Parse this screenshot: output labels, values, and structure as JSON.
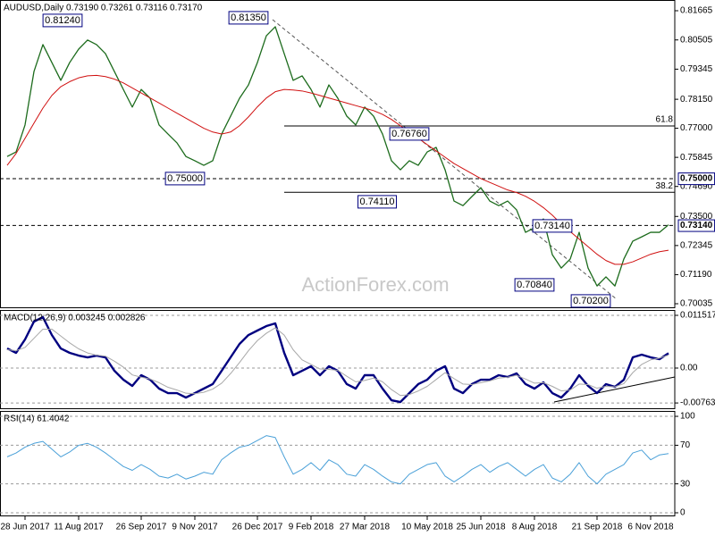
{
  "chart_data": [
    {
      "type": "line",
      "title": "AUDUSD,Daily  0.73190 0.73261 0.73116 0.73170",
      "watermark": "ActionForex.com",
      "categories": [
        null,
        null,
        "28 Jun 2017",
        null,
        null,
        null,
        null,
        null,
        "11 Aug 2017",
        null,
        null,
        null,
        null,
        null,
        null,
        "26 Sep 2017",
        null,
        null,
        null,
        null,
        null,
        "9 Nov 2017",
        null,
        null,
        null,
        null,
        null,
        null,
        "26 Dec 2017",
        null,
        null,
        null,
        null,
        null,
        "9 Feb 2018",
        null,
        null,
        null,
        null,
        null,
        "27 Mar 2018",
        null,
        null,
        null,
        null,
        null,
        null,
        "10 May 2018",
        null,
        null,
        null,
        null,
        null,
        "25 Jun 2018",
        null,
        null,
        null,
        null,
        null,
        "8 Aug 2018",
        null,
        null,
        null,
        null,
        null,
        null,
        "21 Sep 2018",
        null,
        null,
        null,
        null,
        null,
        "6 Nov 2018",
        null,
        null
      ],
      "series": [
        {
          "color": "#1c6b1c",
          "width": 1.3,
          "values": [
            0.7588,
            0.7606,
            0.7713,
            0.7925,
            0.8032,
            0.7961,
            0.789,
            0.7961,
            0.8014,
            0.805,
            0.8032,
            0.7996,
            0.7925,
            0.7854,
            0.7784,
            0.7854,
            0.7819,
            0.7713,
            0.7677,
            0.7642,
            0.7588,
            0.7571,
            0.7553,
            0.7571,
            0.7677,
            0.7748,
            0.7819,
            0.7872,
            0.7961,
            0.8067,
            0.8103,
            0.7996,
            0.789,
            0.7908,
            0.7854,
            0.7784,
            0.7872,
            0.7819,
            0.7748,
            0.7713,
            0.7784,
            0.7748,
            0.7677,
            0.7571,
            0.7535,
            0.7571,
            0.7553,
            0.7606,
            0.7624,
            0.7535,
            0.7411,
            0.7393,
            0.7429,
            0.7464,
            0.7411,
            0.7393,
            0.7411,
            0.7376,
            0.7287,
            0.7305,
            0.734,
            0.7198,
            0.7145,
            0.7181,
            0.7287,
            0.7145,
            0.7074,
            0.711,
            0.7074,
            0.7181,
            0.7252,
            0.7269,
            0.7287,
            0.7287,
            0.7317
          ]
        },
        {
          "color": "#d01010",
          "width": 1,
          "values": [
            0.7553,
            0.76,
            0.766,
            0.772,
            0.778,
            0.783,
            0.7865,
            0.7885,
            0.79,
            0.7908,
            0.791,
            0.7905,
            0.7895,
            0.788,
            0.786,
            0.784,
            0.782,
            0.78,
            0.778,
            0.776,
            0.774,
            0.772,
            0.77,
            0.7685,
            0.7677,
            0.7685,
            0.771,
            0.7745,
            0.7785,
            0.782,
            0.7845,
            0.7854,
            0.7852,
            0.7848,
            0.784,
            0.783,
            0.782,
            0.781,
            0.78,
            0.779,
            0.778,
            0.777,
            0.7755,
            0.7735,
            0.771,
            0.7685,
            0.766,
            0.7635,
            0.761,
            0.7585,
            0.756,
            0.754,
            0.752,
            0.75,
            0.7485,
            0.747,
            0.7455,
            0.7445,
            0.743,
            0.741,
            0.7385,
            0.7355,
            0.732,
            0.729,
            0.726,
            0.723,
            0.72,
            0.7175,
            0.716,
            0.716,
            0.717,
            0.7185,
            0.72,
            0.721,
            0.7216
          ]
        }
      ],
      "ylim": [
        0.69858,
        0.8209
      ],
      "yticks": [
        {
          "value": 0.81665,
          "label": "0.81665"
        },
        {
          "value": 0.80505,
          "label": "0.80505"
        },
        {
          "value": 0.79345,
          "label": "0.79345"
        },
        {
          "value": 0.7815,
          "label": "0.78150"
        },
        {
          "value": 0.77,
          "label": "0.77000"
        },
        {
          "value": 0.75845,
          "label": "0.75845"
        },
        {
          "value": 0.7469,
          "label": "0.74690"
        },
        {
          "value": 0.735,
          "label": "0.73500"
        },
        {
          "value": 0.72345,
          "label": "0.72345"
        },
        {
          "value": 0.7119,
          "label": "0.71190"
        },
        {
          "value": 0.70035,
          "label": "0.70035"
        }
      ],
      "levels": [
        {
          "value": 0.75,
          "label": "0.75000"
        },
        {
          "value": 0.7314,
          "label": "0.73140"
        }
      ],
      "fib_levels": [
        {
          "value": 0.7709,
          "label": "61.8"
        },
        {
          "value": 0.7446,
          "label": "38.2"
        }
      ],
      "annotations": [
        "0.81240",
        "0.81350",
        "0.75000",
        "0.74110",
        "0.76760",
        "0.73140",
        "0.70840",
        "0.70200"
      ]
    },
    {
      "type": "line",
      "title": "MACD(12,26,9) 0.003245 0.002826",
      "series": [
        {
          "color": "#000080",
          "width": 2.4,
          "values": [
            0.00429,
            0.00332,
            0.00625,
            0.01015,
            0.01113,
            0.00722,
            0.00429,
            0.00332,
            0.00273,
            0.00234,
            0.00273,
            0.00234,
            -0.00059,
            -0.00254,
            -0.0039,
            -0.00156,
            -0.00254,
            -0.00449,
            -0.00547,
            -0.00547,
            -0.00644,
            -0.00547,
            -0.00449,
            -0.00351,
            -0.00059,
            0.00234,
            0.00527,
            0.00722,
            0.0082,
            0.00917,
            0.00976,
            0.00332,
            -0.00156,
            -0.00059,
            0.00039,
            -0.00156,
            0.00039,
            -0.00059,
            -0.00351,
            -0.00449,
            -0.00156,
            -0.00156,
            -0.00449,
            -0.00703,
            -0.00742,
            -0.00547,
            -0.00351,
            -0.00254,
            -0.00059,
            0.00039,
            -0.00449,
            -0.00547,
            -0.00351,
            -0.00254,
            -0.00254,
            -0.00156,
            -0.00195,
            -0.00117,
            -0.00351,
            -0.00449,
            -0.00312,
            -0.00547,
            -0.00644,
            -0.00449,
            -0.00156,
            -0.0039,
            -0.00547,
            -0.00351,
            -0.0041,
            -0.00254,
            0.00234,
            0.00293,
            0.00234,
            0.00195,
            0.003245
          ]
        },
        {
          "color": "#a8a8a8",
          "width": 1,
          "values": [
            0.004,
            0.0038,
            0.0045,
            0.0065,
            0.0085,
            0.0085,
            0.007,
            0.0055,
            0.0042,
            0.0033,
            0.0028,
            0.0026,
            0.0015,
            0.0002,
            -0.0015,
            -0.002,
            -0.0024,
            -0.0032,
            -0.0042,
            -0.0048,
            -0.0055,
            -0.0056,
            -0.0053,
            -0.0046,
            -0.0033,
            -0.0012,
            0.0012,
            0.0038,
            0.006,
            0.0076,
            0.0088,
            0.0072,
            0.004,
            0.0018,
            0.0008,
            -0.0002,
            -0.0003,
            -0.0005,
            -0.0018,
            -0.003,
            -0.0027,
            -0.0022,
            -0.003,
            -0.0047,
            -0.006,
            -0.0058,
            -0.005,
            -0.004,
            -0.0025,
            -0.001,
            -0.0023,
            -0.0035,
            -0.0036,
            -0.0032,
            -0.0028,
            -0.0022,
            -0.002,
            -0.0016,
            -0.0024,
            -0.0033,
            -0.0032,
            -0.004,
            -0.005,
            -0.0048,
            -0.0035,
            -0.0036,
            -0.0044,
            -0.004,
            -0.0041,
            -0.0034,
            -0.001,
            0.0008,
            0.0018,
            0.0022,
            0.002826
          ]
        }
      ],
      "ylim": [
        -0.008979,
        0.012688
      ],
      "yticks": [
        0.011517,
        {
          "value": 0,
          "label": "0.00"
        },
        {
          "value": -0.00763,
          "label": "-0.00763"
        }
      ],
      "grid": true
    },
    {
      "type": "line",
      "title": "RSI(14) 61.4042",
      "series": [
        {
          "color": "#4aa0d8",
          "width": 1,
          "values": [
            58,
            62,
            68,
            72,
            74,
            66,
            58,
            63,
            70,
            72,
            68,
            62,
            55,
            48,
            44,
            50,
            45,
            38,
            36,
            40,
            35,
            38,
            42,
            40,
            55,
            62,
            68,
            70,
            75,
            80,
            78,
            58,
            40,
            45,
            52,
            44,
            55,
            50,
            40,
            38,
            50,
            45,
            38,
            32,
            30,
            40,
            45,
            50,
            52,
            38,
            32,
            38,
            45,
            50,
            42,
            48,
            52,
            45,
            38,
            45,
            50,
            36,
            32,
            40,
            52,
            38,
            30,
            40,
            45,
            50,
            62,
            65,
            55,
            60,
            61.4042
          ]
        }
      ],
      "ylim": [
        -3.7,
        105.6
      ],
      "yticks": [
        100,
        70,
        30,
        0
      ],
      "grid": true
    }
  ]
}
